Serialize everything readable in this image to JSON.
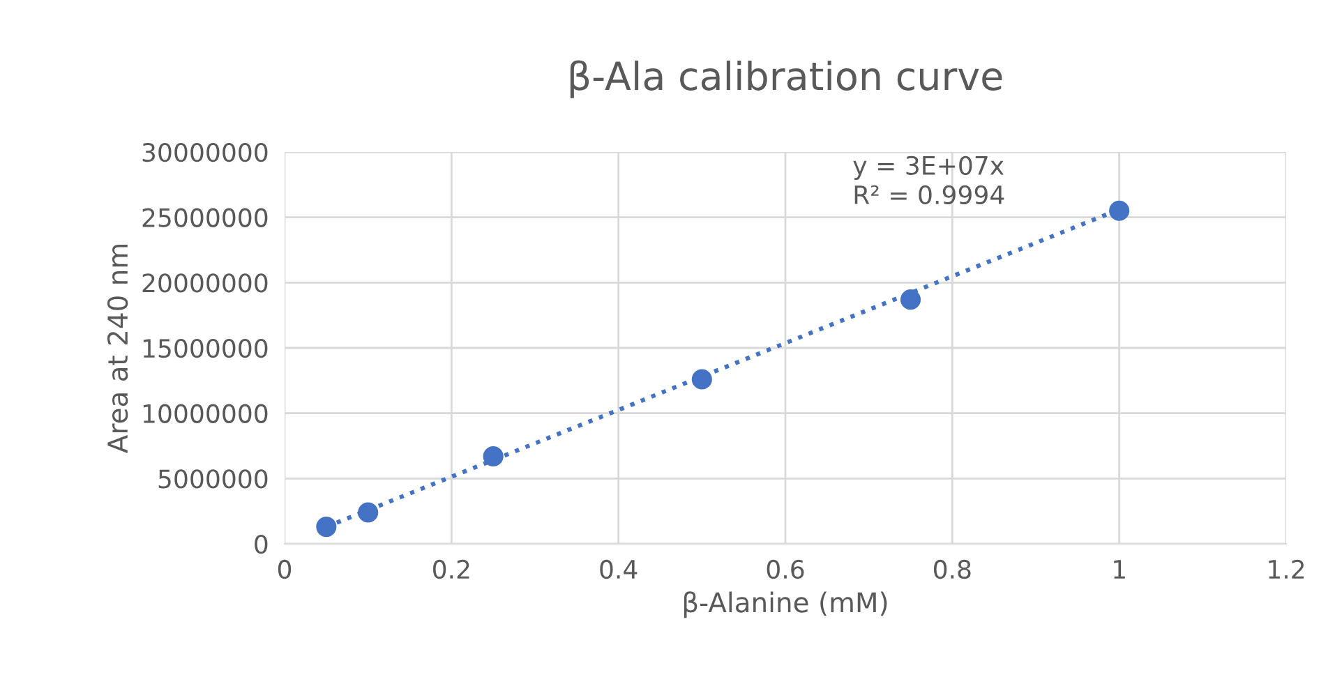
{
  "chart_data": {
    "type": "scatter",
    "title": "β-Ala calibration curve",
    "xlabel": "β-Alanine (mM)",
    "ylabel": "Area at 240 nm",
    "series": [
      {
        "color": "#4472c4",
        "x": [
          0.05,
          0.1,
          0.25,
          0.5,
          0.75,
          1
        ],
        "values": [
          1300000,
          2400000,
          6700000,
          12600000,
          18700000,
          25500000
        ]
      },
      {
        "type": "line",
        "color": "#4472c4",
        "x": [
          0.05,
          1
        ],
        "values": [
          1300000,
          25600000
        ],
        "line_style": "dotted",
        "marker": "none"
      }
    ],
    "annotations": [
      "y = 3E+07x",
      "R² = 0.9994"
    ],
    "xlim": [
      0,
      1.2
    ],
    "xticks": [
      0,
      0.2,
      0.4,
      0.6,
      0.8,
      1,
      1.2
    ],
    "ylim": [
      0,
      30000000
    ],
    "yticks": [
      0,
      5000000,
      10000000,
      15000000,
      20000000,
      25000000,
      30000000
    ],
    "grid": true,
    "legend": false,
    "marker": "circle"
  }
}
